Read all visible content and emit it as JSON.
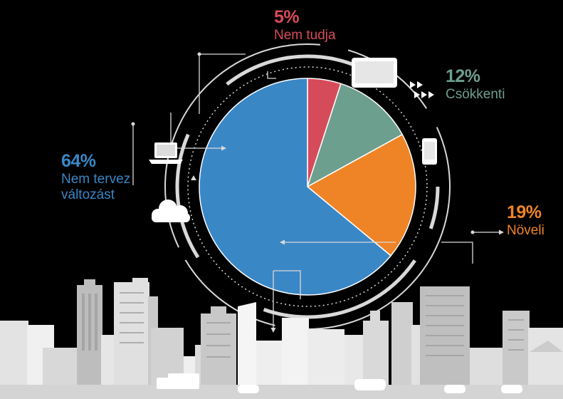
{
  "colors": {
    "background": "#000000",
    "line": "#d9d9d9",
    "building": "#e3e3e3",
    "building_dark": "#c4c4c4"
  },
  "chart_data": {
    "type": "pie",
    "start_angle_deg": 0,
    "direction": "clockwise",
    "slices": [
      {
        "pct_label": "5%",
        "name": "Nem tudja",
        "value": 5,
        "color": "#d64b5a"
      },
      {
        "pct_label": "12%",
        "name": "Csökkenti",
        "value": 12,
        "color": "#6d9f8e"
      },
      {
        "pct_label": "19%",
        "name": "Növeli",
        "value": 19,
        "color": "#ef8426"
      },
      {
        "pct_label": "64%",
        "name_lines": [
          "Nem tervez",
          "változást"
        ],
        "value": 64,
        "color": "#3a87c6"
      }
    ]
  },
  "decorations": {
    "icons": [
      "laptop-icon",
      "tablet-icon",
      "phone-icon",
      "cloud-icon",
      "fast-forward-icon"
    ],
    "background": "city-skyline"
  }
}
